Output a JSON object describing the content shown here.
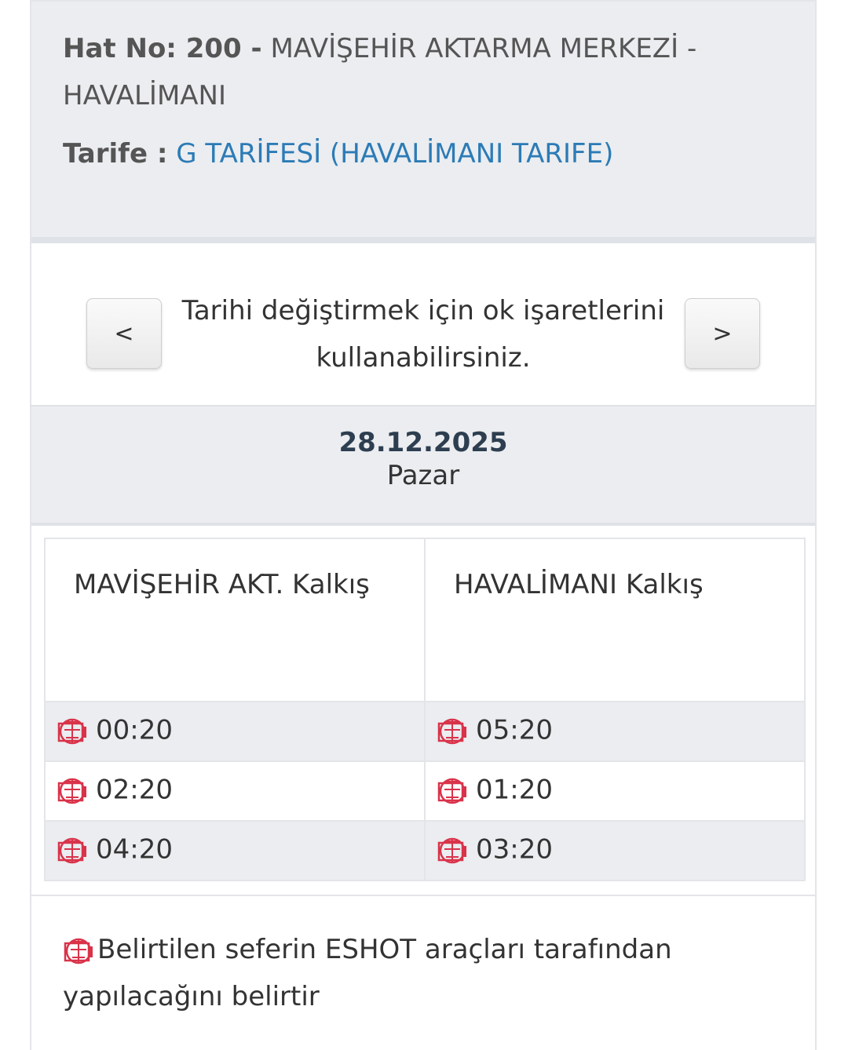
{
  "header": {
    "line_label": "Hat No: 200 -",
    "line_name_1": "MAVİŞEHİR AKTARMA MERKEZİ -",
    "line_name_2": "HAVALİMANI",
    "tariff_label": "Tarife :",
    "tariff_value": "G TARİFESİ (HAVALİMANI TARIFE)"
  },
  "nav": {
    "prev_label": "<",
    "next_label": ">",
    "hint": "Tarihi değiştirmek için ok işaretlerini kullanabilirsiniz."
  },
  "date": {
    "value": "28.12.2025",
    "day": "Pazar"
  },
  "table": {
    "headers": [
      "MAVİŞEHİR AKT. Kalkış",
      "HAVALİMANI Kalkış"
    ],
    "rows": [
      [
        "00:20",
        "05:20"
      ],
      [
        "02:20",
        "01:20"
      ],
      [
        "04:20",
        "03:20"
      ]
    ]
  },
  "footer": {
    "note": "Belirtilen seferin ESHOT araçları tarafından yapılacağını belirtir"
  },
  "colors": {
    "accent": "#2c7bb6",
    "eshot_icon": "#d9334a"
  },
  "icons": {
    "eshot": "eshot-logo-icon"
  }
}
